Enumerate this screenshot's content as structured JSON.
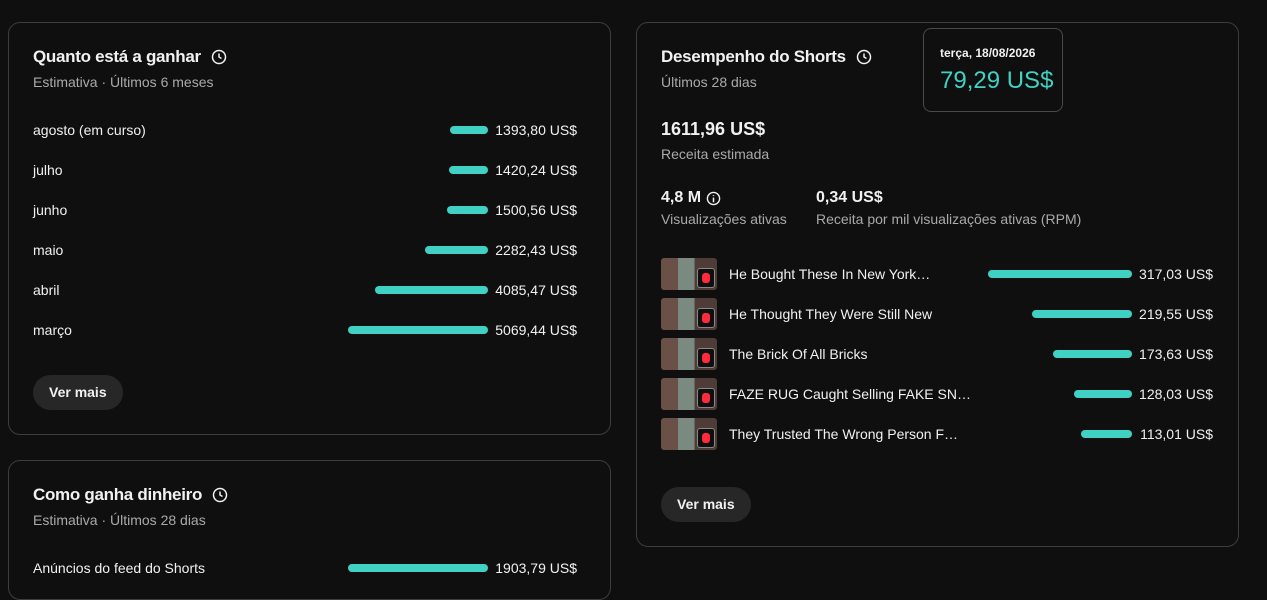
{
  "earnings": {
    "title": "Quanto está a ganhar",
    "subtitle": "Estimativa · Últimos 6 meses",
    "rows": [
      {
        "label": "agosto (em curso)",
        "value": 1393.8,
        "value_label": "1393,80 US$"
      },
      {
        "label": "julho",
        "value": 1420.24,
        "value_label": "1420,24 US$"
      },
      {
        "label": "junho",
        "value": 1500.56,
        "value_label": "1500,56 US$"
      },
      {
        "label": "maio",
        "value": 2282.43,
        "value_label": "2282,43 US$"
      },
      {
        "label": "abril",
        "value": 4085.47,
        "value_label": "4085,47 US$"
      },
      {
        "label": "março",
        "value": 5069.44,
        "value_label": "5069,44 US$"
      }
    ],
    "button": "Ver mais"
  },
  "sources": {
    "title": "Como ganha dinheiro",
    "subtitle": "Estimativa · Últimos 28 dias",
    "rows": [
      {
        "label": "Anúncios do feed do Shorts",
        "value": 1903.79,
        "value_label": "1903,79 US$"
      }
    ]
  },
  "shorts": {
    "title": "Desempenho do Shorts",
    "subtitle": "Últimos 28 dias",
    "revenue": "1611,96 US$",
    "revenue_label": "Receita estimada",
    "views": "4,8 M",
    "views_label": "Visualizações ativas",
    "rpm": "0,34 US$",
    "rpm_label": "Receita por mil visualizações ativas (RPM)",
    "videos": [
      {
        "title": "He Bought These In New York…",
        "value": 317.03,
        "value_label": "317,03 US$"
      },
      {
        "title": "He Thought They Were Still New",
        "value": 219.55,
        "value_label": "219,55 US$"
      },
      {
        "title": "The Brick Of All Bricks",
        "value": 173.63,
        "value_label": "173,63 US$"
      },
      {
        "title": "FAZE RUG Caught Selling FAKE SN…",
        "value": 128.03,
        "value_label": "128,03 US$"
      },
      {
        "title": "They Trusted The Wrong Person F…",
        "value": 113.01,
        "value_label": "113,01 US$"
      }
    ],
    "button": "Ver mais"
  },
  "tooltip": {
    "date": "terça, 18/08/2026",
    "value": "79,29 US$"
  }
}
